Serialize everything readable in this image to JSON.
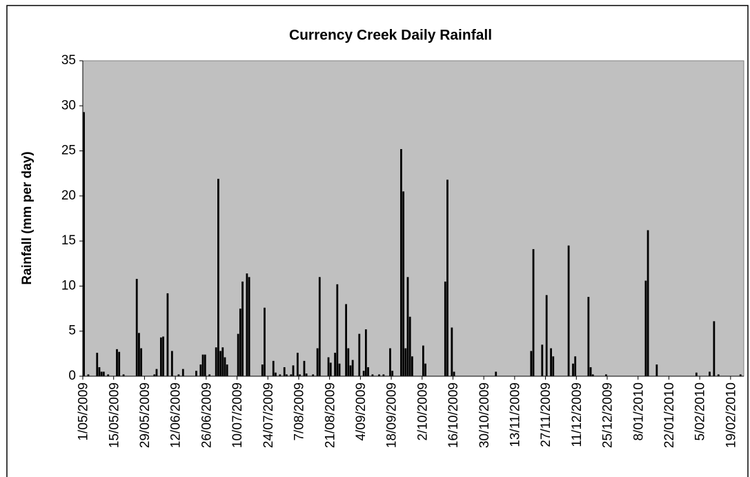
{
  "chart_data": {
    "type": "bar",
    "title": "Currency Creek Daily Rainfall",
    "y_label": "Rainfall (mm per day)",
    "categories": [
      "1/05/2009",
      null,
      null,
      null,
      null,
      null,
      null,
      null,
      null,
      null,
      null,
      null,
      null,
      null,
      "15/05/2009",
      null,
      null,
      null,
      null,
      null,
      null,
      null,
      null,
      null,
      null,
      null,
      null,
      null,
      "29/05/2009",
      null,
      null,
      null,
      null,
      null,
      null,
      null,
      null,
      null,
      null,
      null,
      null,
      null,
      "12/06/2009",
      null,
      null,
      null,
      null,
      null,
      null,
      null,
      null,
      null,
      null,
      null,
      null,
      null,
      "26/06/2009",
      null,
      null,
      null,
      null,
      null,
      null,
      null,
      null,
      null,
      null,
      null,
      null,
      null,
      "10/07/2009",
      null,
      null,
      null,
      null,
      null,
      null,
      null,
      null,
      null,
      null,
      null,
      null,
      null,
      "24/07/2009",
      null,
      null,
      null,
      null,
      null,
      null,
      null,
      null,
      null,
      null,
      null,
      null,
      null,
      "7/08/2009",
      null,
      null,
      null,
      null,
      null,
      null,
      null,
      null,
      null,
      null,
      null,
      null,
      null,
      "21/08/2009",
      null,
      null,
      null,
      null,
      null,
      null,
      null,
      null,
      null,
      null,
      null,
      null,
      null,
      "4/09/2009",
      null,
      null,
      null,
      null,
      null,
      null,
      null,
      null,
      null,
      null,
      null,
      null,
      null,
      "18/09/2009",
      null,
      null,
      null,
      null,
      null,
      null,
      null,
      null,
      null,
      null,
      null,
      null,
      null,
      "2/10/2009",
      null,
      null,
      null,
      null,
      null,
      null,
      null,
      null,
      null,
      null,
      null,
      null,
      null,
      "16/10/2009",
      null,
      null,
      null,
      null,
      null,
      null,
      null,
      null,
      null,
      null,
      null,
      null,
      null,
      "30/10/2009",
      null,
      null,
      null,
      null,
      null,
      null,
      null,
      null,
      null,
      null,
      null,
      null,
      null,
      "13/11/2009",
      null,
      null,
      null,
      null,
      null,
      null,
      null,
      null,
      null,
      null,
      null,
      null,
      null,
      "27/11/2009",
      null,
      null,
      null,
      null,
      null,
      null,
      null,
      null,
      null,
      null,
      null,
      null,
      null,
      "11/12/2009",
      null,
      null,
      null,
      null,
      null,
      null,
      null,
      null,
      null,
      null,
      null,
      null,
      null,
      "25/12/2009",
      null,
      null,
      null,
      null,
      null,
      null,
      null,
      null,
      null,
      null,
      null,
      null,
      null,
      "8/01/2010",
      null,
      null,
      null,
      null,
      null,
      null,
      null,
      null,
      null,
      null,
      null,
      null,
      null,
      "22/01/2010",
      null,
      null,
      null,
      null,
      null,
      null,
      null,
      null,
      null,
      null,
      null,
      null,
      null,
      "5/02/2010",
      null,
      null,
      null,
      null,
      null,
      null,
      null,
      null,
      null,
      null,
      null,
      null,
      null,
      "19/02/2010",
      null,
      null,
      null,
      null,
      null
    ],
    "values": [
      29.3,
      0,
      0.2,
      0,
      0,
      0,
      2.6,
      1,
      0.5,
      0.5,
      0,
      0.2,
      0,
      0,
      0,
      3,
      2.7,
      0,
      0.2,
      0,
      0,
      0,
      0,
      0,
      10.8,
      4.8,
      3.1,
      0,
      0,
      0,
      0,
      0,
      0.2,
      0.8,
      0,
      4.3,
      4.4,
      0,
      9.2,
      0,
      2.8,
      0,
      0,
      0.2,
      0,
      0.8,
      0,
      0,
      0,
      0,
      0,
      0.6,
      0,
      1.3,
      2.4,
      2.4,
      0,
      0.2,
      0,
      0,
      3.2,
      21.9,
      2.8,
      3.2,
      2.1,
      1.3,
      0,
      0,
      0,
      0,
      4.7,
      7.5,
      10.5,
      0,
      11.4,
      11,
      0,
      0,
      0,
      0,
      0,
      1.3,
      7.6,
      0,
      0,
      0,
      1.7,
      0.4,
      0,
      0.2,
      0,
      1,
      0.2,
      0,
      0.2,
      1.2,
      0,
      2.6,
      0.2,
      0,
      1.7,
      0.3,
      0,
      0,
      0.2,
      0,
      3.1,
      11,
      0,
      0,
      0,
      2.1,
      1.5,
      0,
      2.6,
      10.2,
      1.4,
      0,
      0,
      8,
      3.1,
      1.2,
      1.8,
      0,
      0,
      4.7,
      0,
      0.6,
      5.2,
      1,
      0,
      0.2,
      0,
      0,
      0.2,
      0,
      0.2,
      0,
      0,
      3.1,
      0.6,
      0,
      0,
      0,
      25.2,
      20.5,
      3.1,
      11,
      6.6,
      2.2,
      0,
      0,
      0,
      0,
      3.4,
      1.4,
      0,
      0,
      0,
      0,
      0,
      0,
      0,
      0,
      10.5,
      21.8,
      0,
      5.4,
      0.5,
      0,
      0,
      0,
      0,
      0,
      0,
      0,
      0,
      0,
      0,
      0,
      0,
      0,
      0,
      0,
      0,
      0,
      0,
      0.5,
      0,
      0,
      0,
      0,
      0,
      0,
      0,
      0,
      0,
      0,
      0,
      0,
      0,
      0,
      0,
      2.8,
      14.1,
      0,
      0,
      0,
      3.5,
      0,
      9,
      0,
      3.1,
      2.2,
      0,
      0,
      0,
      0,
      0,
      0,
      14.5,
      0,
      1.4,
      2.2,
      0,
      0,
      0,
      0,
      0,
      8.8,
      1,
      0.2,
      0,
      0,
      0,
      0,
      0,
      0.2,
      0,
      0,
      0,
      0,
      0,
      0,
      0,
      0,
      0,
      0,
      0,
      0,
      0,
      0,
      0,
      0,
      0,
      10.6,
      16.2,
      0,
      0,
      0,
      1.3,
      0,
      0,
      0,
      0,
      0,
      0,
      0,
      0,
      0,
      0,
      0,
      0,
      0,
      0,
      0,
      0,
      0,
      0.4,
      0,
      0,
      0,
      0,
      0,
      0.5,
      0,
      6.1,
      0,
      0.2,
      0,
      0,
      0,
      0,
      0,
      0,
      0,
      0,
      0,
      0.2,
      0
    ],
    "color": "#000000",
    "background": "#c0c0c0",
    "ylim": [
      0,
      35
    ],
    "yticks": [
      0,
      5,
      10,
      15,
      20,
      25,
      30,
      35
    ],
    "grid": false
  }
}
